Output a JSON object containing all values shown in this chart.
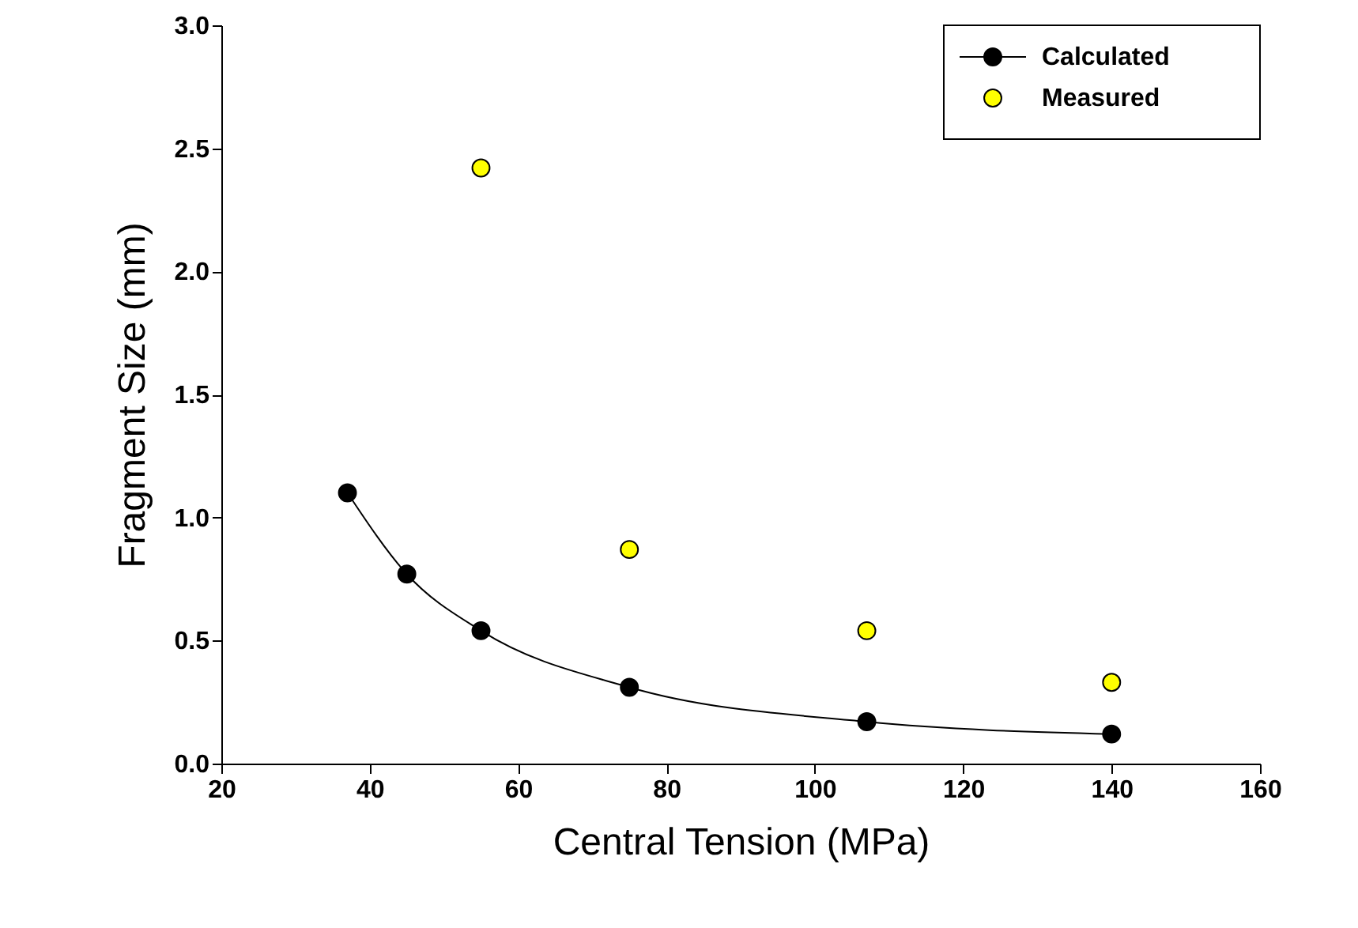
{
  "chart_data": {
    "type": "scatter",
    "xlabel": "Central Tension (MPa)",
    "ylabel": "Fragment Size (mm)",
    "xlim": [
      20,
      160
    ],
    "xticks": [
      20,
      40,
      60,
      80,
      100,
      120,
      140,
      160
    ],
    "ylim": [
      0,
      3.0
    ],
    "yticks": [
      {
        "value": 0,
        "label": "0.0"
      },
      {
        "value": 0.5,
        "label": "0.5"
      },
      {
        "value": 1.0,
        "label": "1.0"
      },
      {
        "value": 1.5,
        "label": "1.5"
      },
      {
        "value": 2.0,
        "label": "2.0"
      },
      {
        "value": 2.5,
        "label": "2.5"
      },
      {
        "value": 3.0,
        "label": "3.0"
      }
    ],
    "grid": false,
    "legend": "top right",
    "marker": "circle",
    "series": [
      {
        "name": "Calculated",
        "type": "line",
        "color": "#000000",
        "line_style": "solid",
        "x": [
          37,
          45,
          55,
          75,
          107,
          140
        ],
        "values": [
          1.1,
          0.77,
          0.54,
          0.31,
          0.17,
          0.12
        ]
      },
      {
        "name": "Measured",
        "color": "#ffff00",
        "x": [
          55,
          75,
          107,
          140
        ],
        "values": [
          2.42,
          0.87,
          0.54,
          0.33
        ]
      }
    ]
  }
}
